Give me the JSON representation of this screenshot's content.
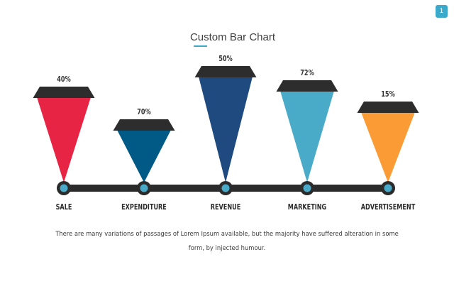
{
  "slide_number": "1",
  "colors": {
    "accent": "#3ba9c9",
    "cap": "#2d2d2d",
    "axis": "#2b2b2b",
    "node_fill": "#49a9c9"
  },
  "chart_data": {
    "type": "bar",
    "title": "Custom Bar Chart",
    "categories": [
      "SALE",
      "EXPENDITURE",
      "REVENUE",
      "MARKETING",
      "ADVERTISEMENT"
    ],
    "values": [
      40,
      70,
      50,
      72,
      15
    ],
    "labels": [
      "40%",
      "70%",
      "50%",
      "72%",
      "15%"
    ],
    "bar_colors": [
      "#e82444",
      "#015a86",
      "#1e4a80",
      "#4aabc8",
      "#fb9b36"
    ],
    "xlabel": "",
    "ylabel": ""
  },
  "caption": "There are many variations of passages of Lorem Ipsum available, but the majority have suffered alteration in some form, by injected humour."
}
